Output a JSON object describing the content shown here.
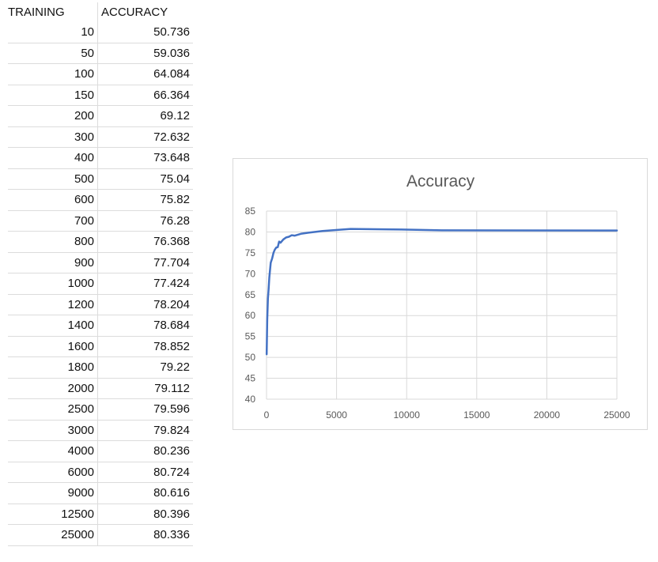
{
  "table": {
    "headers": [
      "TRAINING",
      "ACCURACY"
    ],
    "rows": [
      [
        "10",
        "50.736"
      ],
      [
        "50",
        "59.036"
      ],
      [
        "100",
        "64.084"
      ],
      [
        "150",
        "66.364"
      ],
      [
        "200",
        "69.12"
      ],
      [
        "300",
        "72.632"
      ],
      [
        "400",
        "73.648"
      ],
      [
        "500",
        "75.04"
      ],
      [
        "600",
        "75.82"
      ],
      [
        "700",
        "76.28"
      ],
      [
        "800",
        "76.368"
      ],
      [
        "900",
        "77.704"
      ],
      [
        "1000",
        "77.424"
      ],
      [
        "1200",
        "78.204"
      ],
      [
        "1400",
        "78.684"
      ],
      [
        "1600",
        "78.852"
      ],
      [
        "1800",
        "79.22"
      ],
      [
        "2000",
        "79.112"
      ],
      [
        "2500",
        "79.596"
      ],
      [
        "3000",
        "79.824"
      ],
      [
        "4000",
        "80.236"
      ],
      [
        "6000",
        "80.724"
      ],
      [
        "9000",
        "80.616"
      ],
      [
        "12500",
        "80.396"
      ],
      [
        "25000",
        "80.336"
      ]
    ]
  },
  "chart_data": {
    "type": "line",
    "title": "Accuracy",
    "xlabel": "",
    "ylabel": "",
    "x": [
      10,
      50,
      100,
      150,
      200,
      300,
      400,
      500,
      600,
      700,
      800,
      900,
      1000,
      1200,
      1400,
      1600,
      1800,
      2000,
      2500,
      3000,
      4000,
      6000,
      9000,
      12500,
      25000
    ],
    "series": [
      {
        "values": [
          50.736,
          59.036,
          64.084,
          66.364,
          69.12,
          72.632,
          73.648,
          75.04,
          75.82,
          76.28,
          76.368,
          77.704,
          77.424,
          78.204,
          78.684,
          78.852,
          79.22,
          79.112,
          79.596,
          79.824,
          80.236,
          80.724,
          80.616,
          80.396,
          80.336
        ]
      }
    ],
    "xlim": [
      0,
      25000
    ],
    "ylim": [
      40,
      85
    ],
    "x_ticks": [
      "0",
      "5000",
      "10000",
      "15000",
      "20000",
      "25000"
    ],
    "y_ticks": [
      "40",
      "45",
      "50",
      "55",
      "60",
      "65",
      "70",
      "75",
      "80",
      "85"
    ],
    "grid": true,
    "legend": "none",
    "line_color": "#4472C4"
  }
}
